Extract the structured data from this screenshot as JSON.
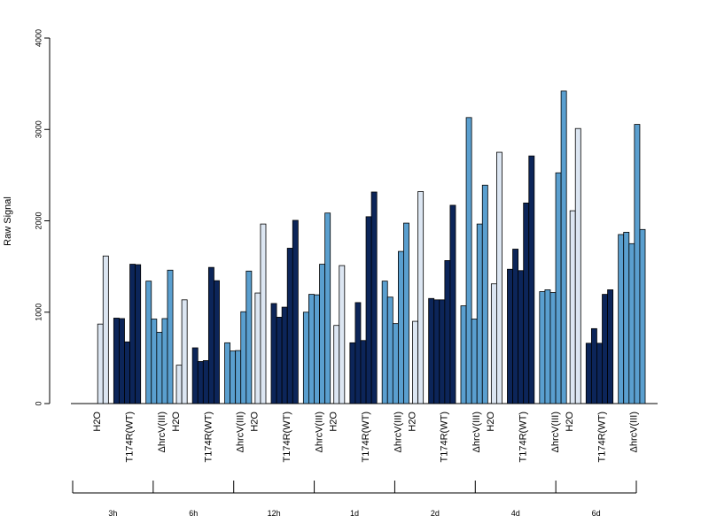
{
  "chart_data": {
    "type": "bar",
    "ylabel": "Raw Signal",
    "ylim": [
      0,
      4000
    ],
    "yticks": [
      0,
      1000,
      2000,
      3000,
      4000
    ],
    "grid": false,
    "colors": {
      "H2O": "#dce6f2",
      "T174R(WT)": "#0c2559",
      "ΔhrcV(III)": "#5a9fcf"
    },
    "timepoints": [
      "3h",
      "6h",
      "12h",
      "1d",
      "2d",
      "4d",
      "6d"
    ],
    "treatments": [
      "H2O",
      "T174R(WT)",
      "ΔhrcV(III)"
    ],
    "series": [
      {
        "timepoint": "3h",
        "groups": [
          {
            "treatment": "H2O",
            "values": [
              0,
              870,
              1615
            ]
          },
          {
            "treatment": "T174R(WT)",
            "values": [
              935,
              930,
              675,
              1525,
              1520
            ]
          },
          {
            "treatment": "ΔhrcV(III)",
            "values": [
              1340,
              925,
              780,
              930,
              1460
            ]
          }
        ]
      },
      {
        "timepoint": "6h",
        "groups": [
          {
            "treatment": "H2O",
            "values": [
              0,
              420,
              1135
            ]
          },
          {
            "treatment": "T174R(WT)",
            "values": [
              610,
              460,
              470,
              1490,
              1345
            ]
          },
          {
            "treatment": "ΔhrcV(III)",
            "values": [
              665,
              575,
              580,
              1005,
              1450
            ]
          }
        ]
      },
      {
        "timepoint": "12h",
        "groups": [
          {
            "treatment": "H2O",
            "values": [
              0,
              1210,
              1965
            ]
          },
          {
            "treatment": "T174R(WT)",
            "values": [
              1095,
              945,
              1055,
              1700,
              2005
            ]
          },
          {
            "treatment": "ΔhrcV(III)",
            "values": [
              1000,
              1195,
              1190,
              1525,
              2085
            ]
          }
        ]
      },
      {
        "timepoint": "1d",
        "groups": [
          {
            "treatment": "H2O",
            "values": [
              0,
              855,
              1510
            ]
          },
          {
            "treatment": "T174R(WT)",
            "values": [
              665,
              1105,
              690,
              2045,
              2315
            ]
          },
          {
            "treatment": "ΔhrcV(III)",
            "values": [
              1340,
              1165,
              875,
              1665,
              1975
            ]
          }
        ]
      },
      {
        "timepoint": "2d",
        "groups": [
          {
            "treatment": "H2O",
            "values": [
              0,
              900,
              2320
            ]
          },
          {
            "treatment": "T174R(WT)",
            "values": [
              1150,
              1135,
              1135,
              1565,
              2170
            ]
          },
          {
            "treatment": "ΔhrcV(III)",
            "values": [
              1070,
              3130,
              925,
              1965,
              2390
            ]
          }
        ]
      },
      {
        "timepoint": "4d",
        "groups": [
          {
            "treatment": "H2O",
            "values": [
              0,
              1310,
              2750
            ]
          },
          {
            "treatment": "T174R(WT)",
            "values": [
              1470,
              1690,
              1455,
              2195,
              2710
            ]
          },
          {
            "treatment": "ΔhrcV(III)",
            "values": [
              1225,
              1245,
              1215,
              2525,
              3420
            ]
          }
        ]
      },
      {
        "timepoint": "6d",
        "groups": [
          {
            "treatment": "H2O",
            "values": [
              0,
              2110,
              3010
            ]
          },
          {
            "treatment": "T174R(WT)",
            "values": [
              660,
              820,
              660,
              1195,
              1245
            ]
          },
          {
            "treatment": "ΔhrcV(III)",
            "values": [
              1850,
              1875,
              1750,
              3055,
              1905
            ]
          }
        ]
      }
    ]
  }
}
